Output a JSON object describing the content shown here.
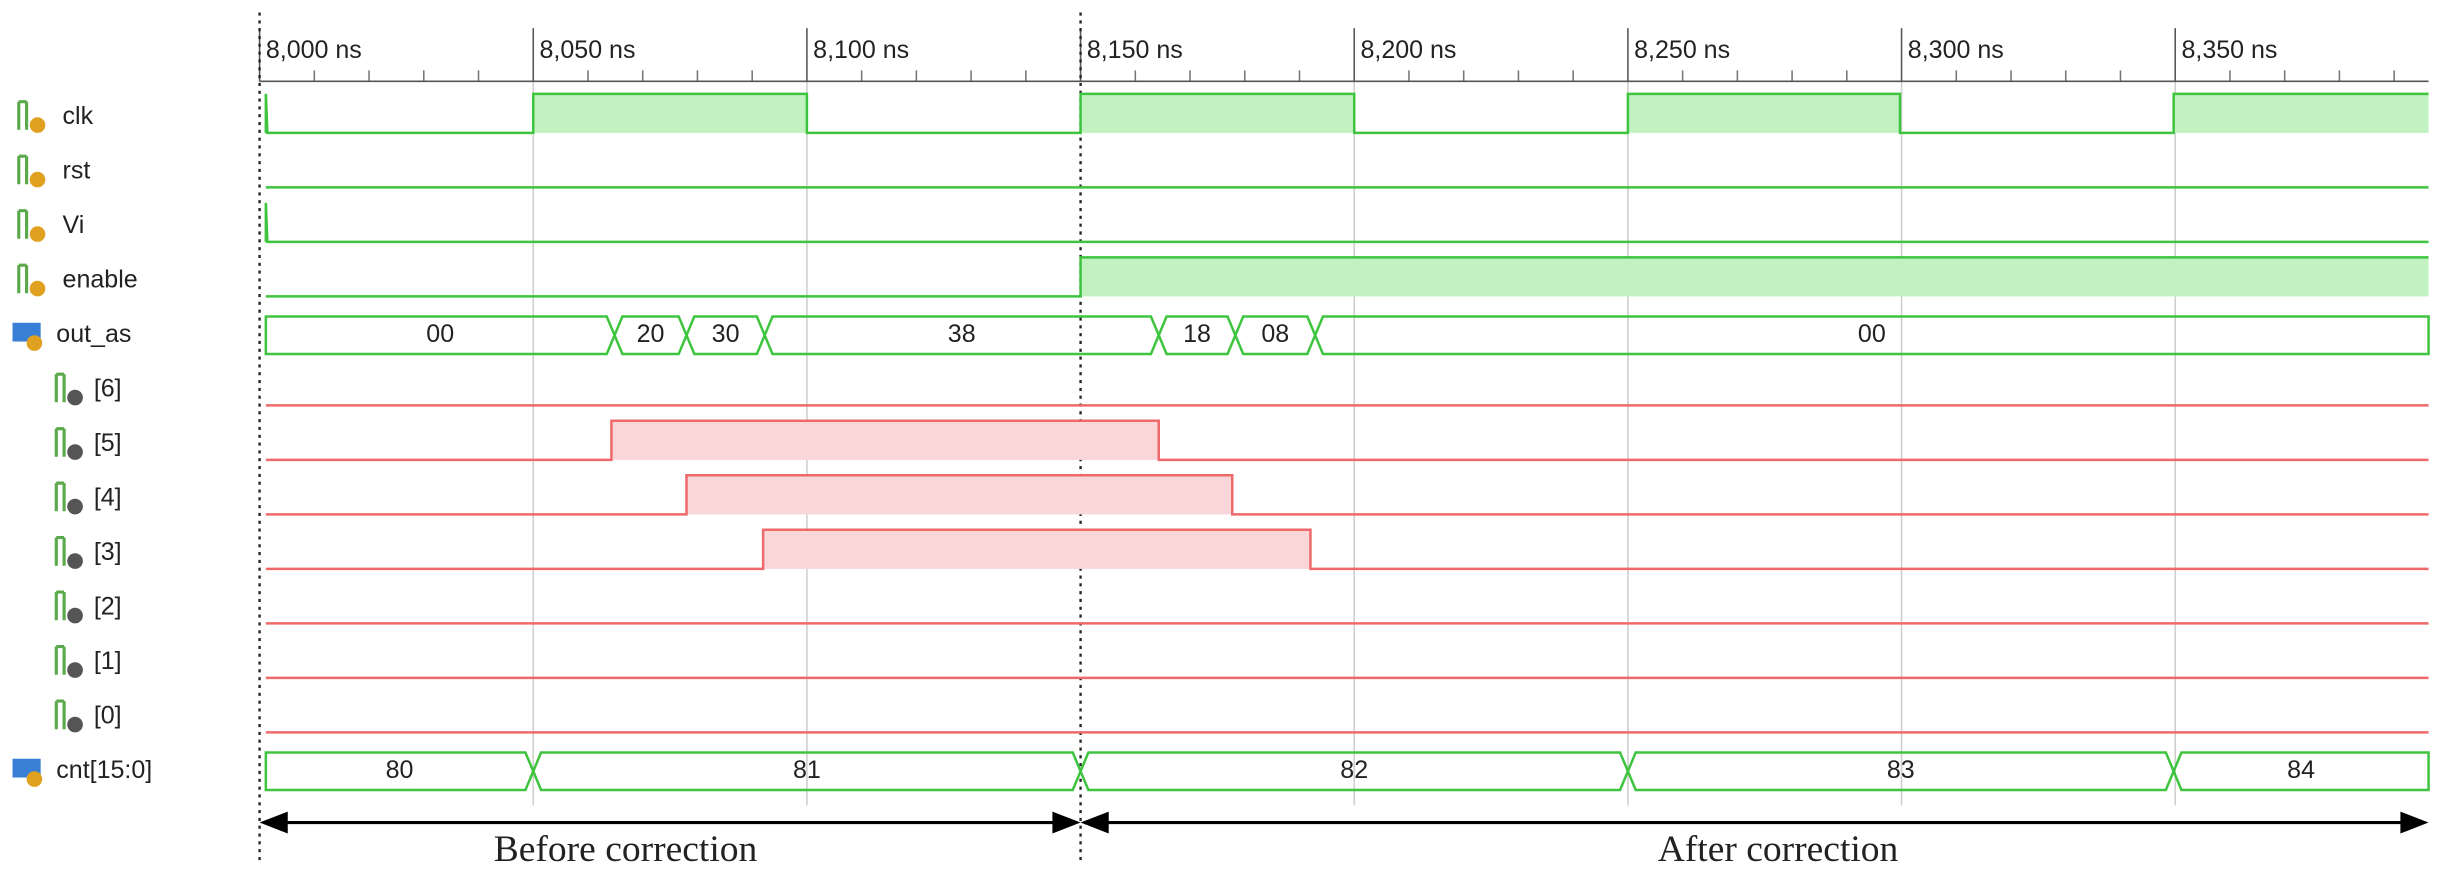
{
  "timeline": {
    "ticks": [
      "8,000 ns",
      "8,050 ns",
      "8,100 ns",
      "8,150 ns",
      "8,200 ns",
      "8,250 ns",
      "8,300 ns",
      "8,350 ns"
    ]
  },
  "signals": [
    {
      "name": "clk"
    },
    {
      "name": "rst"
    },
    {
      "name": "Vi"
    },
    {
      "name": "enable"
    },
    {
      "name": "out_as",
      "values": [
        "00",
        "20",
        "30",
        "38",
        "18",
        "08",
        "00"
      ]
    },
    {
      "name": "[6]"
    },
    {
      "name": "[5]"
    },
    {
      "name": "[4]"
    },
    {
      "name": "[3]"
    },
    {
      "name": "[2]"
    },
    {
      "name": "[1]"
    },
    {
      "name": "[0]"
    },
    {
      "name": "cnt[15:0]",
      "values": [
        "80",
        "81",
        "82",
        "83",
        "84"
      ]
    }
  ],
  "annotations": [
    "Before correction",
    "After correction"
  ]
}
